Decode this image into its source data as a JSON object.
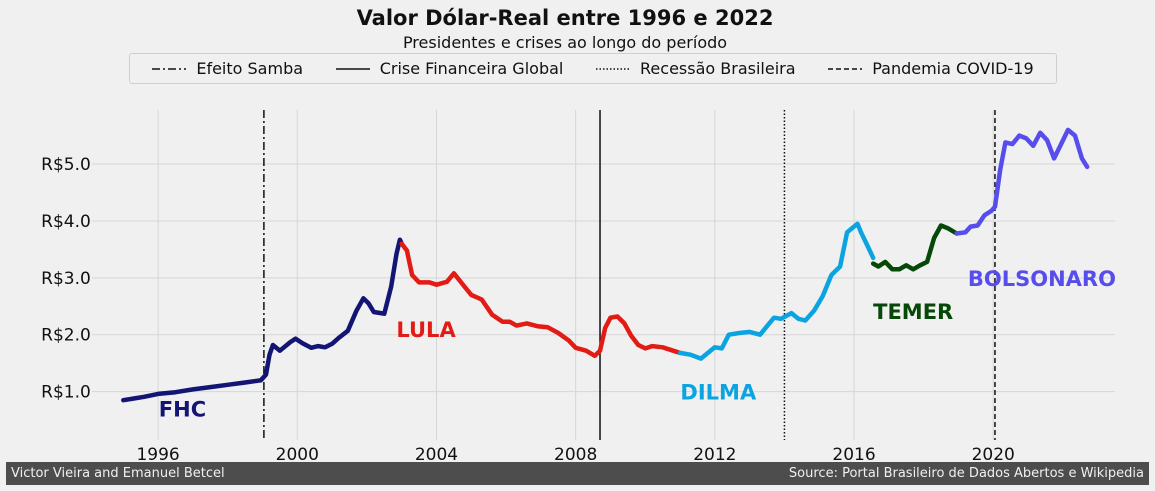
{
  "chart_data": {
    "type": "line",
    "title": "Valor Dólar-Real entre 1996 e 2022",
    "subtitle": "Presidentes e crises ao longo do período",
    "xlim": [
      1994.1,
      2023.5
    ],
    "ylim": [
      0.15,
      5.95
    ],
    "x_ticks": [
      1996,
      2000,
      2004,
      2008,
      2012,
      2016,
      2020
    ],
    "y_ticks": [
      1.0,
      2.0,
      3.0,
      4.0,
      5.0
    ],
    "y_tick_labels": [
      "R$1.0",
      "R$2.0",
      "R$3.0",
      "R$4.0",
      "R$5.0"
    ],
    "grid": true,
    "legend_position": "top-center",
    "crises": [
      {
        "name": "Efeito Samba",
        "x": 1999.04,
        "style": "dashdot"
      },
      {
        "name": "Crise Financeira Global",
        "x": 2008.7,
        "style": "solid"
      },
      {
        "name": "Recessão Brasileira",
        "x": 2014.0,
        "style": "dotted"
      },
      {
        "name": "Pandemia COVID-19",
        "x": 2020.05,
        "style": "dashed"
      }
    ],
    "series": [
      {
        "name": "FHC",
        "color": "#131575",
        "label_pos": [
          1996.7,
          0.7
        ],
        "points": [
          [
            1995.0,
            0.85
          ],
          [
            1995.3,
            0.88
          ],
          [
            1995.6,
            0.91
          ],
          [
            1996.0,
            0.96
          ],
          [
            1996.5,
            0.99
          ],
          [
            1997.0,
            1.04
          ],
          [
            1997.5,
            1.08
          ],
          [
            1998.0,
            1.12
          ],
          [
            1998.5,
            1.16
          ],
          [
            1998.95,
            1.2
          ],
          [
            1999.1,
            1.3
          ],
          [
            1999.2,
            1.65
          ],
          [
            1999.3,
            1.82
          ],
          [
            1999.5,
            1.72
          ],
          [
            1999.8,
            1.87
          ],
          [
            1999.95,
            1.93
          ],
          [
            2000.15,
            1.85
          ],
          [
            2000.4,
            1.77
          ],
          [
            2000.6,
            1.8
          ],
          [
            2000.8,
            1.78
          ],
          [
            2001.0,
            1.84
          ],
          [
            2001.2,
            1.95
          ],
          [
            2001.45,
            2.07
          ],
          [
            2001.7,
            2.42
          ],
          [
            2001.9,
            2.64
          ],
          [
            2002.05,
            2.55
          ],
          [
            2002.2,
            2.4
          ],
          [
            2002.5,
            2.37
          ],
          [
            2002.7,
            2.85
          ],
          [
            2002.85,
            3.42
          ],
          [
            2002.95,
            3.67
          ],
          [
            2003.0,
            3.6
          ]
        ]
      },
      {
        "name": "LULA",
        "color": "#e21b14",
        "label_pos": [
          2003.7,
          2.1
        ],
        "points": [
          [
            2003.0,
            3.6
          ],
          [
            2003.15,
            3.48
          ],
          [
            2003.3,
            3.05
          ],
          [
            2003.5,
            2.92
          ],
          [
            2003.8,
            2.92
          ],
          [
            2004.0,
            2.88
          ],
          [
            2004.3,
            2.93
          ],
          [
            2004.5,
            3.08
          ],
          [
            2004.8,
            2.85
          ],
          [
            2005.0,
            2.7
          ],
          [
            2005.3,
            2.62
          ],
          [
            2005.6,
            2.35
          ],
          [
            2005.9,
            2.23
          ],
          [
            2006.1,
            2.23
          ],
          [
            2006.3,
            2.16
          ],
          [
            2006.6,
            2.2
          ],
          [
            2006.9,
            2.15
          ],
          [
            2007.2,
            2.13
          ],
          [
            2007.5,
            2.03
          ],
          [
            2007.8,
            1.9
          ],
          [
            2008.0,
            1.77
          ],
          [
            2008.3,
            1.72
          ],
          [
            2008.55,
            1.63
          ],
          [
            2008.7,
            1.72
          ],
          [
            2008.85,
            2.12
          ],
          [
            2009.0,
            2.3
          ],
          [
            2009.2,
            2.32
          ],
          [
            2009.4,
            2.2
          ],
          [
            2009.6,
            1.98
          ],
          [
            2009.8,
            1.82
          ],
          [
            2010.0,
            1.76
          ],
          [
            2010.2,
            1.8
          ],
          [
            2010.5,
            1.78
          ],
          [
            2010.8,
            1.72
          ],
          [
            2011.0,
            1.68
          ]
        ]
      },
      {
        "name": "DILMA",
        "color": "#0ba4e0",
        "label_pos": [
          2012.1,
          1.0
        ],
        "points": [
          [
            2011.0,
            1.68
          ],
          [
            2011.3,
            1.65
          ],
          [
            2011.6,
            1.58
          ],
          [
            2011.8,
            1.68
          ],
          [
            2012.0,
            1.78
          ],
          [
            2012.2,
            1.76
          ],
          [
            2012.4,
            2.0
          ],
          [
            2012.7,
            2.03
          ],
          [
            2013.0,
            2.05
          ],
          [
            2013.3,
            2.0
          ],
          [
            2013.5,
            2.15
          ],
          [
            2013.7,
            2.3
          ],
          [
            2013.9,
            2.28
          ],
          [
            2014.2,
            2.38
          ],
          [
            2014.4,
            2.28
          ],
          [
            2014.6,
            2.25
          ],
          [
            2014.85,
            2.42
          ],
          [
            2015.1,
            2.68
          ],
          [
            2015.35,
            3.05
          ],
          [
            2015.6,
            3.2
          ],
          [
            2015.8,
            3.8
          ],
          [
            2016.0,
            3.9
          ],
          [
            2016.1,
            3.95
          ],
          [
            2016.2,
            3.8
          ],
          [
            2016.4,
            3.55
          ],
          [
            2016.55,
            3.35
          ]
        ]
      },
      {
        "name": "TEMER",
        "color": "#054807",
        "label_pos": [
          2017.7,
          2.42
        ],
        "points": [
          [
            2016.55,
            3.25
          ],
          [
            2016.7,
            3.2
          ],
          [
            2016.9,
            3.28
          ],
          [
            2017.1,
            3.15
          ],
          [
            2017.3,
            3.15
          ],
          [
            2017.5,
            3.22
          ],
          [
            2017.7,
            3.15
          ],
          [
            2017.9,
            3.22
          ],
          [
            2018.1,
            3.28
          ],
          [
            2018.3,
            3.7
          ],
          [
            2018.5,
            3.92
          ],
          [
            2018.7,
            3.87
          ],
          [
            2018.95,
            3.78
          ]
        ]
      },
      {
        "name": "BOLSONARO",
        "color": "#574cec",
        "label_pos": [
          2021.4,
          3.0
        ],
        "points": [
          [
            2018.95,
            3.78
          ],
          [
            2019.2,
            3.8
          ],
          [
            2019.35,
            3.9
          ],
          [
            2019.55,
            3.92
          ],
          [
            2019.75,
            4.1
          ],
          [
            2019.95,
            4.18
          ],
          [
            2020.05,
            4.25
          ],
          [
            2020.2,
            4.9
          ],
          [
            2020.35,
            5.38
          ],
          [
            2020.55,
            5.35
          ],
          [
            2020.75,
            5.5
          ],
          [
            2020.95,
            5.45
          ],
          [
            2021.15,
            5.32
          ],
          [
            2021.35,
            5.55
          ],
          [
            2021.55,
            5.42
          ],
          [
            2021.75,
            5.1
          ],
          [
            2021.95,
            5.35
          ],
          [
            2022.15,
            5.6
          ],
          [
            2022.35,
            5.5
          ],
          [
            2022.55,
            5.1
          ],
          [
            2022.7,
            4.95
          ]
        ]
      }
    ]
  },
  "footer": {
    "left": "Victor Vieira and Emanuel Betcel",
    "right": "Source: Portal Brasileiro de Dados Abertos e Wikipedia"
  }
}
